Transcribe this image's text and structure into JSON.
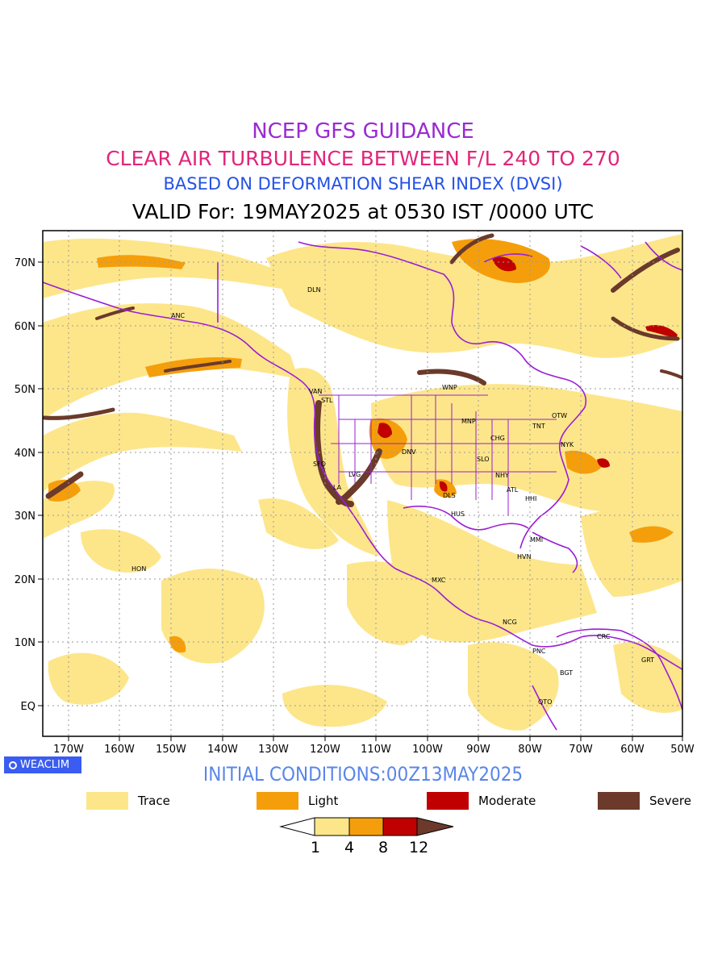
{
  "titles": {
    "line1": "NCEP GFS GUIDANCE",
    "line2": "CLEAR AIR TURBULENCE BETWEEN F/L 240 TO 270",
    "line3": "BASED ON DEFORMATION SHEAR INDEX (DVSI)",
    "line4": "VALID For: 19MAY2025 at 0530 IST /0000 UTC"
  },
  "colors": {
    "title1": "#9a2ad2",
    "title2": "#e0267a",
    "title3": "#2451e6",
    "trace": "#fde68a",
    "light": "#f59e0b",
    "moderate": "#c00000",
    "severe": "#6b3a2a",
    "boundary": "#9b1fd6"
  },
  "map": {
    "lat_labels": [
      "70N",
      "60N",
      "50N",
      "40N",
      "30N",
      "20N",
      "10N",
      "EQ"
    ],
    "lon_labels": [
      "170W",
      "160W",
      "150W",
      "140W",
      "130W",
      "120W",
      "110W",
      "100W",
      "90W",
      "80W",
      "70W",
      "60W",
      "50W"
    ],
    "stations": [
      "DLN",
      "ANC",
      "VAN",
      "STL",
      "WNP",
      "MNP",
      "OTW",
      "TNT",
      "CHG",
      "NYK",
      "DNV",
      "SLO",
      "SFO",
      "LVG",
      "LA",
      "NHY",
      "ATL",
      "DLS",
      "HHI",
      "HUS",
      "MMI",
      "HVN",
      "HON",
      "MXC",
      "NCG",
      "PNC",
      "CRC",
      "BGT",
      "QTO",
      "GRT"
    ]
  },
  "footer": {
    "badge": "WEACLIM",
    "initial_conditions": "INITIAL CONDITIONS:00Z13MAY2025"
  },
  "legend": {
    "items": [
      {
        "label": "Trace",
        "color": "#fde68a"
      },
      {
        "label": "Light",
        "color": "#f59e0b"
      },
      {
        "label": "Moderate",
        "color": "#c00000"
      },
      {
        "label": "Severe",
        "color": "#6b3a2a"
      }
    ],
    "colorbar_ticks": [
      "1",
      "4",
      "8",
      "12"
    ]
  }
}
